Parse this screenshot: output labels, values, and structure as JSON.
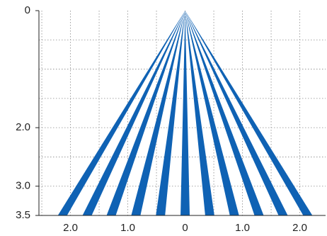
{
  "chart_data": {
    "type": "line",
    "title": "",
    "xlabel": "",
    "ylabel": "",
    "x_ticks": [
      {
        "value": -2.0,
        "label": "2.0"
      },
      {
        "value": -1.0,
        "label": "1.0"
      },
      {
        "value": 0,
        "label": "0"
      },
      {
        "value": 1.0,
        "label": "1.0"
      },
      {
        "value": 2.0,
        "label": "2.0"
      }
    ],
    "y_ticks": [
      {
        "value": 0,
        "label": "0"
      },
      {
        "value": 2.0,
        "label": "2.0"
      },
      {
        "value": 3.0,
        "label": "3.0"
      },
      {
        "value": 3.5,
        "label": "3.5"
      }
    ],
    "xlim": [
      -2.55,
      2.45
    ],
    "ylim": [
      0,
      3.5
    ],
    "y_inverted": true,
    "grid": true,
    "legend": "none",
    "apex": {
      "x": 0,
      "y": 0
    },
    "beam_end_x_at_y_max": [
      -2.14,
      -1.71,
      -1.29,
      -0.86,
      -0.43,
      0,
      0.43,
      0.86,
      1.29,
      1.71,
      2.14
    ],
    "beam_end_width_at_y_max": 0.16,
    "beam_color": "#0f62b4"
  }
}
